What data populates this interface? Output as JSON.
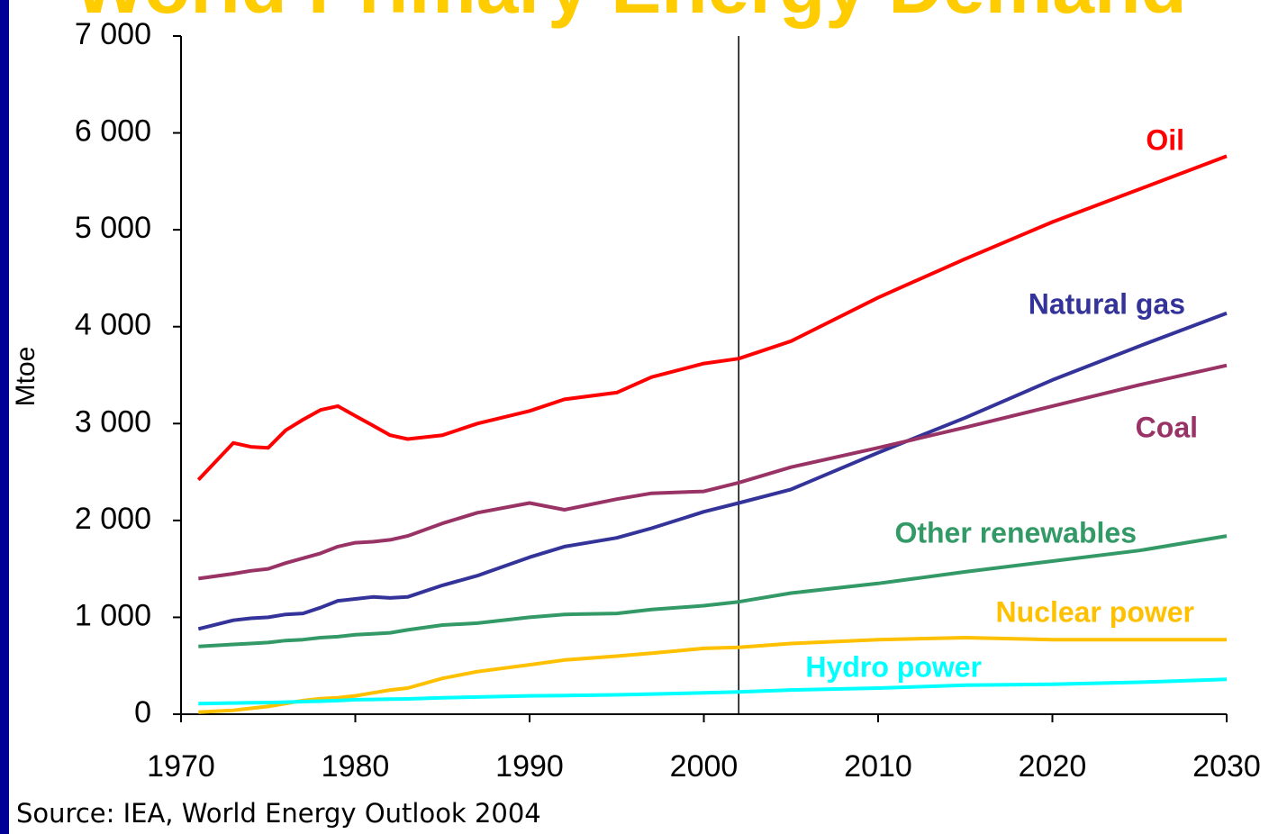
{
  "chart_data": {
    "type": "line",
    "title": "World Primary Energy Demand",
    "y_label": "Mtoe",
    "source": "Source: IEA, World Energy Outlook 2004",
    "x": [
      1971,
      1973,
      1974,
      1975,
      1976,
      1977,
      1978,
      1979,
      1980,
      1981,
      1982,
      1983,
      1985,
      1987,
      1990,
      1992,
      1995,
      1997,
      2000,
      2002,
      2005,
      2010,
      2015,
      2020,
      2025,
      2030
    ],
    "series": [
      {
        "name": "Oil",
        "color": "#ff0000",
        "values": [
          2420,
          2800,
          2760,
          2750,
          2930,
          3040,
          3140,
          3180,
          3080,
          2980,
          2880,
          2840,
          2880,
          3000,
          3130,
          3250,
          3320,
          3480,
          3620,
          3670,
          3850,
          4300,
          4700,
          5080,
          5420,
          5760
        ]
      },
      {
        "name": "Natural gas",
        "color": "#333399",
        "values": [
          880,
          970,
          990,
          1000,
          1030,
          1040,
          1100,
          1170,
          1190,
          1210,
          1200,
          1210,
          1330,
          1430,
          1620,
          1730,
          1820,
          1920,
          2090,
          2180,
          2320,
          2700,
          3060,
          3450,
          3800,
          4140
        ]
      },
      {
        "name": "Coal",
        "color": "#993366",
        "values": [
          1400,
          1450,
          1480,
          1500,
          1560,
          1610,
          1660,
          1730,
          1770,
          1780,
          1800,
          1840,
          1970,
          2080,
          2180,
          2110,
          2220,
          2280,
          2300,
          2390,
          2550,
          2750,
          2960,
          3180,
          3400,
          3600
        ]
      },
      {
        "name": "Other renewables",
        "color": "#339966",
        "values": [
          700,
          720,
          730,
          740,
          760,
          770,
          790,
          800,
          820,
          830,
          840,
          870,
          920,
          940,
          1000,
          1030,
          1040,
          1080,
          1120,
          1160,
          1250,
          1350,
          1470,
          1580,
          1690,
          1840
        ]
      },
      {
        "name": "Nuclear power",
        "color": "#ffc000",
        "values": [
          20,
          40,
          60,
          80,
          110,
          140,
          160,
          170,
          190,
          220,
          250,
          270,
          370,
          440,
          510,
          560,
          600,
          630,
          680,
          690,
          730,
          770,
          790,
          770,
          770,
          770
        ]
      },
      {
        "name": "Hydro power",
        "color": "#00ffff",
        "values": [
          110,
          115,
          118,
          120,
          125,
          130,
          135,
          140,
          150,
          152,
          155,
          158,
          170,
          178,
          190,
          193,
          200,
          208,
          220,
          230,
          250,
          270,
          300,
          310,
          330,
          360
        ]
      }
    ],
    "vertical_line_x": 2002,
    "xlim": [
      1970,
      2030
    ],
    "xticks": [
      1970,
      1980,
      1990,
      2000,
      2010,
      2020,
      2030
    ],
    "ylim": [
      0,
      7000
    ],
    "yticks": [
      0,
      {
        "value": 1000,
        "label": "1 000"
      },
      {
        "value": 2000,
        "label": "2 000"
      },
      {
        "value": 3000,
        "label": "3 000"
      },
      {
        "value": 4000,
        "label": "4 000"
      },
      {
        "value": 5000,
        "label": "5 000"
      },
      {
        "value": 6000,
        "label": "6 000"
      },
      {
        "value": 7000,
        "label": "7 000"
      }
    ],
    "grid": false
  }
}
